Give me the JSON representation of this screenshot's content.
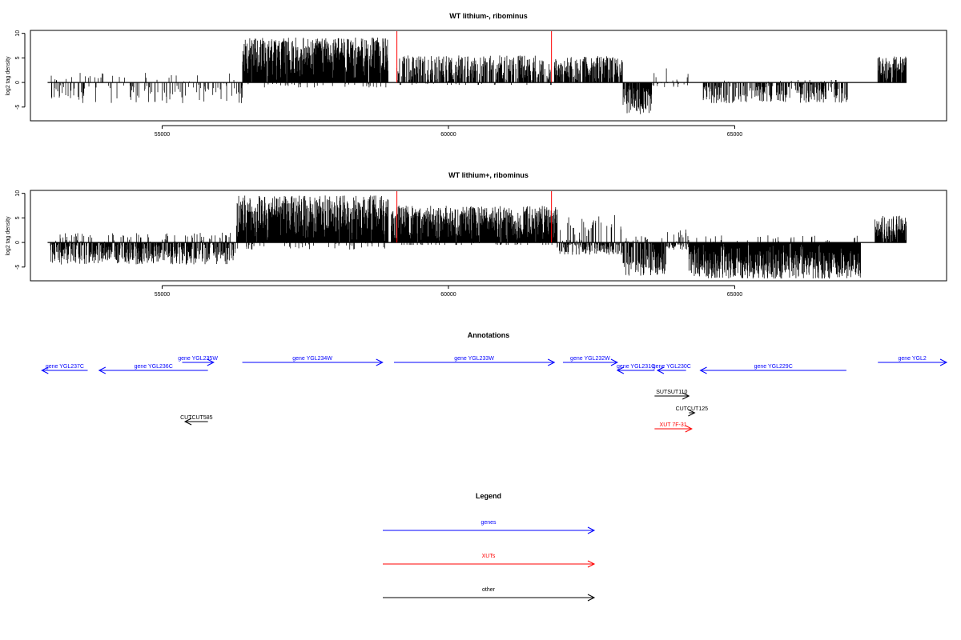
{
  "chart_data": [
    {
      "type": "bar",
      "title": "WT lithium-, ribominus",
      "xlabel": "",
      "ylabel": "log2 tag density",
      "xlim": [
        52700,
        68700
      ],
      "ylim": [
        -7.8,
        10.6
      ],
      "xticks": [
        55000,
        60000,
        65000
      ],
      "yticks": [
        -5,
        0,
        5,
        10
      ],
      "baseline_range": [
        53000,
        68000
      ],
      "markers": [
        59100,
        61800
      ],
      "marker_color": "#ff0000",
      "segments": [
        {
          "range": [
            53050,
            56400
          ],
          "lo": -4.2,
          "hi": 2.0,
          "density": 0.22,
          "seed": 11
        },
        {
          "range": [
            56400,
            58950
          ],
          "lo": -1.0,
          "hi": 9.2,
          "density": 0.95,
          "bias": "pos",
          "seed": 12
        },
        {
          "range": [
            59100,
            61800
          ],
          "lo": -0.5,
          "hi": 5.5,
          "density": 0.55,
          "bias": "pos",
          "seed": 13
        },
        {
          "range": [
            61850,
            63050
          ],
          "lo": 0.0,
          "hi": 5.4,
          "density": 0.65,
          "bias": "pos",
          "seed": 14
        },
        {
          "range": [
            63050,
            63550
          ],
          "lo": -6.5,
          "hi": 0.0,
          "density": 0.8,
          "bias": "neg",
          "seed": 15
        },
        {
          "range": [
            63550,
            64200
          ],
          "lo": -1.0,
          "hi": 3.0,
          "density": 0.15,
          "seed": 16
        },
        {
          "range": [
            64450,
            67000
          ],
          "lo": -4.2,
          "hi": 0.5,
          "density": 0.45,
          "bias": "neg",
          "seed": 17
        },
        {
          "range": [
            67500,
            68000
          ],
          "lo": 0.0,
          "hi": 5.3,
          "density": 0.8,
          "bias": "pos",
          "seed": 18
        }
      ]
    },
    {
      "type": "bar",
      "title": "WT lithium+, ribominus",
      "xlabel": "",
      "ylabel": "log2 tag density",
      "xlim": [
        52700,
        68700
      ],
      "ylim": [
        -7.8,
        10.6
      ],
      "xticks": [
        55000,
        60000,
        65000
      ],
      "yticks": [
        -5,
        0,
        5,
        10
      ],
      "baseline_range": [
        53000,
        68000
      ],
      "markers": [
        59100,
        61800
      ],
      "marker_color": "#ff0000",
      "segments": [
        {
          "range": [
            53050,
            56300
          ],
          "lo": -4.5,
          "hi": 2.0,
          "density": 0.7,
          "seed": 21
        },
        {
          "range": [
            56300,
            58950
          ],
          "lo": -1.5,
          "hi": 9.6,
          "density": 1.0,
          "bias": "pos",
          "seed": 22
        },
        {
          "range": [
            59000,
            61900
          ],
          "lo": -0.5,
          "hi": 7.5,
          "density": 0.95,
          "bias": "pos",
          "seed": 23
        },
        {
          "range": [
            61900,
            63050
          ],
          "lo": -2.5,
          "hi": 5.6,
          "density": 0.6,
          "seed": 24
        },
        {
          "range": [
            63050,
            63800
          ],
          "lo": -6.8,
          "hi": 3.5,
          "density": 0.7,
          "bias": "neg",
          "seed": 25
        },
        {
          "range": [
            63800,
            64200
          ],
          "lo": -1.5,
          "hi": 3.5,
          "density": 0.5,
          "seed": 26
        },
        {
          "range": [
            64200,
            67200
          ],
          "lo": -7.4,
          "hi": 1.5,
          "density": 0.95,
          "bias": "neg",
          "seed": 27
        },
        {
          "range": [
            67450,
            68000
          ],
          "lo": 0.0,
          "hi": 5.5,
          "density": 0.8,
          "bias": "pos",
          "seed": 28
        }
      ]
    }
  ],
  "annotations": {
    "title": "Annotations",
    "xlim": [
      52700,
      68700
    ],
    "rows": 6,
    "features": [
      {
        "label": "gene YGL237C",
        "start": 53700,
        "end": 52900,
        "row": 1,
        "color": "#0000ff"
      },
      {
        "label": "gene YGL236C",
        "start": 55800,
        "end": 53900,
        "row": 1,
        "color": "#0000ff"
      },
      {
        "label": "gene YGL235W",
        "start": 55350,
        "end": 55900,
        "row": 0,
        "color": "#0000ff"
      },
      {
        "label": "gene YGL234W",
        "start": 56400,
        "end": 58850,
        "row": 0,
        "color": "#0000ff"
      },
      {
        "label": "gene YGL233W",
        "start": 59050,
        "end": 61850,
        "row": 0,
        "color": "#0000ff"
      },
      {
        "label": "gene YGL232W",
        "start": 62000,
        "end": 62950,
        "row": 0,
        "color": "#0000ff"
      },
      {
        "label": "gene YGL231C",
        "start": 63600,
        "end": 62950,
        "row": 1,
        "color": "#0000ff"
      },
      {
        "label": "gene YGL230C",
        "start": 64150,
        "end": 63650,
        "row": 1,
        "color": "#0000ff"
      },
      {
        "label": "gene YGL229C",
        "start": 66950,
        "end": 64400,
        "row": 1,
        "color": "#0000ff"
      },
      {
        "label": "gene YGL2",
        "start": 67500,
        "end": 68700,
        "row": 0,
        "color": "#0000ff"
      },
      {
        "label": "SUTSUT110",
        "start": 63600,
        "end": 64200,
        "row": 2,
        "color": "#000000"
      },
      {
        "label": "CUTCUT125",
        "start": 64200,
        "end": 64300,
        "row": 3,
        "color": "#000000"
      },
      {
        "label": "XUT 7F-31",
        "start": 63600,
        "end": 64250,
        "row": 4,
        "color": "#ff0000"
      },
      {
        "label": "CUTCUT585",
        "start": 55800,
        "end": 55400,
        "row": 5,
        "color": "#000000"
      }
    ]
  },
  "legend": {
    "title": "Legend",
    "items": [
      {
        "label": "genes",
        "color": "#0000ff"
      },
      {
        "label": "XUTs",
        "color": "#ff0000"
      },
      {
        "label": "other",
        "color": "#000000"
      }
    ]
  }
}
